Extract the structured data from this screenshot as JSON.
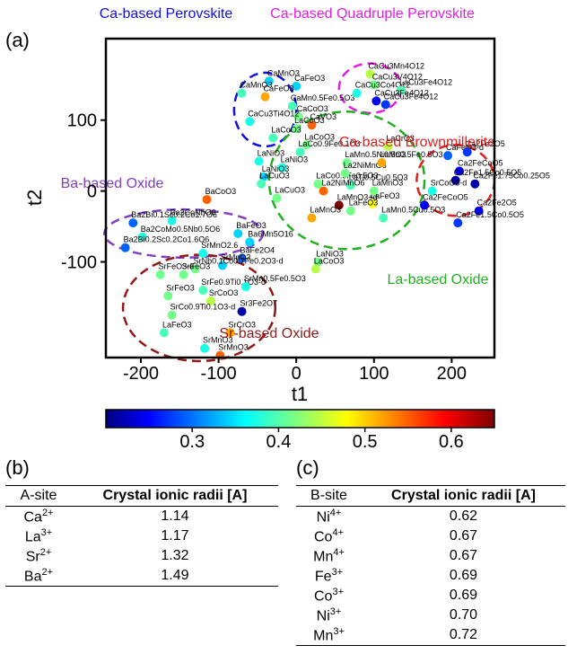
{
  "panel_labels": {
    "a": "(a)",
    "b": "(b)",
    "c": "(c)"
  },
  "chart_data": {
    "type": "scatter",
    "xlabel": "t1",
    "ylabel": "t2",
    "xlim": [
      -245,
      255
    ],
    "ylim": [
      -235,
      215
    ],
    "xticks": [
      -200,
      -100,
      0,
      100,
      200
    ],
    "yticks": [
      -100,
      0,
      100
    ],
    "colorbar": {
      "range": [
        0.2,
        0.65
      ],
      "ticks": [
        0.3,
        0.4,
        0.5,
        0.6
      ],
      "colormap": "jet"
    },
    "points": [
      {
        "label": "CaMnO3",
        "x": -35,
        "y": 155,
        "c": 0.35
      },
      {
        "label": "CaMnO3",
        "x": -70,
        "y": 138,
        "c": 0.4
      },
      {
        "label": "CaFeO3",
        "x": 0,
        "y": 148,
        "c": 0.35
      },
      {
        "label": "CaFeO3",
        "x": -40,
        "y": 133,
        "c": 0.52
      },
      {
        "label": "CaMn0.5Fe0.5O3",
        "x": -5,
        "y": 120,
        "c": 0.4
      },
      {
        "label": "CaCoO3",
        "x": 3,
        "y": 105,
        "c": 0.42
      },
      {
        "label": "CaVO3",
        "x": 20,
        "y": 93,
        "c": 0.55
      },
      {
        "label": "CaCu3Ti4O12",
        "x": -60,
        "y": 98,
        "c": 0.38
      },
      {
        "label": "CaCu3Mn4O12",
        "x": 95,
        "y": 165,
        "c": 0.45
      },
      {
        "label": "CaCu3V4O12",
        "x": 100,
        "y": 150,
        "c": 0.42
      },
      {
        "label": "CaCu3Co4O12",
        "x": 78,
        "y": 138,
        "c": 0.38
      },
      {
        "label": "LaCu3Fe4O12",
        "x": 135,
        "y": 142,
        "c": 0.4
      },
      {
        "label": "CaCu3Fe4O12",
        "x": 103,
        "y": 127,
        "c": 0.25
      },
      {
        "label": "CaCu3Fe4O12",
        "x": 115,
        "y": 122,
        "c": 0.28
      },
      {
        "label": "LaCoO3",
        "x": 0,
        "y": 88,
        "c": 0.42
      },
      {
        "label": "LaCoO3",
        "x": -30,
        "y": 75,
        "c": 0.4
      },
      {
        "label": "LaCoO3",
        "x": 13,
        "y": 65,
        "c": 0.42
      },
      {
        "label": "LaCo0.9Fe0.1O3",
        "x": 5,
        "y": 55,
        "c": 0.4
      },
      {
        "label": "LaNiO3",
        "x": -48,
        "y": 42,
        "c": 0.38
      },
      {
        "label": "LaNiO3",
        "x": -18,
        "y": 33,
        "c": 0.38
      },
      {
        "label": "LaNiO3",
        "x": -42,
        "y": 20,
        "c": 0.35
      },
      {
        "label": "LaCuO3",
        "x": -45,
        "y": 10,
        "c": 0.4
      },
      {
        "label": "LaCo0.5Fe0.5O3",
        "x": 28,
        "y": 10,
        "c": 0.42
      },
      {
        "label": "LaCuO3",
        "x": -25,
        "y": -10,
        "c": 0.42
      },
      {
        "label": "LaMn0.5Ni0.5O3",
        "x": 65,
        "y": 40,
        "c": 0.42
      },
      {
        "label": "La2NiMnO6",
        "x": 63,
        "y": 25,
        "c": 0.42
      },
      {
        "label": "LaTi0.5Cu0.5O3",
        "x": 70,
        "y": 8,
        "c": 0.4
      },
      {
        "label": "LaMn0.5Fe0.5O3",
        "x": 110,
        "y": 40,
        "c": 0.52
      },
      {
        "label": "LaCrO3",
        "x": 118,
        "y": 63,
        "c": 0.45
      },
      {
        "label": "LaFeO3",
        "x": 98,
        "y": -18,
        "c": 0.48
      },
      {
        "label": "LaMnO3",
        "x": 100,
        "y": 0,
        "c": 0.42
      },
      {
        "label": "LaMnO3+d",
        "x": 55,
        "y": -20,
        "c": 0.65
      },
      {
        "label": "LaFeO3",
        "x": 70,
        "y": -28,
        "c": 0.42
      },
      {
        "label": "LaMnO3",
        "x": 20,
        "y": -38,
        "c": 0.52
      },
      {
        "label": "LaMn0.5Cu0.5O3",
        "x": 112,
        "y": -38,
        "c": 0.4
      },
      {
        "label": "La2NiMnO6",
        "x": 35,
        "y": 0,
        "c": 0.55
      },
      {
        "label": "LaNiO3",
        "x": 28,
        "y": -100,
        "c": 0.42
      },
      {
        "label": "LaCoO3",
        "x": 25,
        "y": -110,
        "c": 0.45
      },
      {
        "label": "BaCoO3",
        "x": -115,
        "y": -12,
        "c": 0.55
      },
      {
        "label": "Ba2CoNbO6",
        "x": -160,
        "y": -42,
        "c": 0.38
      },
      {
        "label": "Ba2CoMo0.5Nb0.5O6",
        "x": -198,
        "y": -65,
        "c": 0.38
      },
      {
        "label": "Ba2Bi0.1Sc0.2Co1.7O6",
        "x": -210,
        "y": -45,
        "c": 0.3
      },
      {
        "label": "Ba2Bi0.2Sc0.2Co1.6O6",
        "x": -220,
        "y": -80,
        "c": 0.3
      },
      {
        "label": "BaFeO3",
        "x": -75,
        "y": -60,
        "c": 0.35
      },
      {
        "label": "Ba6Mn5O16",
        "x": -60,
        "y": -72,
        "c": 0.35
      },
      {
        "label": "BaFe2O4",
        "x": -70,
        "y": -95,
        "c": 0.3
      },
      {
        "label": "CaFeO3-d",
        "x": 195,
        "y": 50,
        "c": 0.3
      },
      {
        "label": "Ca2Fe2O5",
        "x": 220,
        "y": 55,
        "c": 0.28
      },
      {
        "label": "Ca2FeCoO5",
        "x": 210,
        "y": 28,
        "c": 0.25
      },
      {
        "label": "Ca2Fe1.5Co0.5O5",
        "x": 205,
        "y": 15,
        "c": 0.22
      },
      {
        "label": "Ca2Fe1.75Co0.25O5",
        "x": 230,
        "y": 10,
        "c": 0.22
      },
      {
        "label": "SrCoO3-d",
        "x": 175,
        "y": 0,
        "c": 0.38
      },
      {
        "label": "Ca2FeCoO5",
        "x": 165,
        "y": -20,
        "c": 0.25
      },
      {
        "label": "Ca2Fe2O5",
        "x": 235,
        "y": -28,
        "c": 0.25
      },
      {
        "label": "Ca2Fe1.5Co0.5O5",
        "x": 208,
        "y": -45,
        "c": 0.28
      },
      {
        "label": "SrMnO2.6",
        "x": -120,
        "y": -88,
        "c": 0.38
      },
      {
        "label": "SrMnO3",
        "x": -95,
        "y": -105,
        "c": 0.35
      },
      {
        "label": "SrNb0.1Co0.7Fe0.2O3-d",
        "x": -130,
        "y": -110,
        "c": 0.42
      },
      {
        "label": "SrFeO3",
        "x": -145,
        "y": -118,
        "c": 0.42
      },
      {
        "label": "SrFeO3-d",
        "x": -175,
        "y": -118,
        "c": 0.42
      },
      {
        "label": "SrFeO3",
        "x": -165,
        "y": -148,
        "c": 0.42
      },
      {
        "label": "SrFe0.9Ti0.1O3-d",
        "x": -120,
        "y": -140,
        "c": 0.4
      },
      {
        "label": "SrMn0.5Fe0.5O3",
        "x": -65,
        "y": -135,
        "c": 0.38
      },
      {
        "label": "SrCoO3",
        "x": -110,
        "y": -155,
        "c": 0.45
      },
      {
        "label": "SrCo0.9Ti0.1O3-d",
        "x": -160,
        "y": -175,
        "c": 0.42
      },
      {
        "label": "Sr3Fe2O7",
        "x": -70,
        "y": -170,
        "c": 0.22
      },
      {
        "label": "LaFeO3",
        "x": -170,
        "y": -200,
        "c": 0.4
      },
      {
        "label": "SrCrO3",
        "x": -85,
        "y": -200,
        "c": 0.52
      },
      {
        "label": "SrMnO3",
        "x": -118,
        "y": -222,
        "c": 0.38
      },
      {
        "label": "SrMnO3",
        "x": -98,
        "y": -232,
        "c": 0.55
      }
    ],
    "groups": [
      {
        "name": "Ca-based Perovskite",
        "color": "#1010e0"
      },
      {
        "name": "Ca-based Quadruple Perovskite",
        "color": "#e020e0"
      },
      {
        "name": "Ca-based Brownmillerite",
        "color": "#e02020"
      },
      {
        "name": "Ba-based Oxide",
        "color": "#8040c0"
      },
      {
        "name": "La-based Oxide",
        "color": "#20b020"
      },
      {
        "name": "Sr-based Oxide",
        "color": "#901818"
      }
    ]
  },
  "table_b": {
    "headers": [
      "A-site",
      "Crystal ionic radii [A]"
    ],
    "rows": [
      {
        "ion": "Ca",
        "charge": "2+",
        "radius": "1.14"
      },
      {
        "ion": "La",
        "charge": "3+",
        "radius": "1.17"
      },
      {
        "ion": "Sr",
        "charge": "2+",
        "radius": "1.32"
      },
      {
        "ion": "Ba",
        "charge": "2+",
        "radius": "1.49"
      }
    ]
  },
  "table_c": {
    "headers": [
      "B-site",
      "Crystal ionic radii [A]"
    ],
    "rows": [
      {
        "ion": "Ni",
        "charge": "4+",
        "radius": "0.62"
      },
      {
        "ion": "Co",
        "charge": "4+",
        "radius": "0.67"
      },
      {
        "ion": "Mn",
        "charge": "4+",
        "radius": "0.67"
      },
      {
        "ion": "Fe",
        "charge": "3+",
        "radius": "0.69"
      },
      {
        "ion": "Co",
        "charge": "3+",
        "radius": "0.69"
      },
      {
        "ion": "Ni",
        "charge": "3+",
        "radius": "0.70"
      },
      {
        "ion": "Mn",
        "charge": "3+",
        "radius": "0.72"
      }
    ]
  }
}
